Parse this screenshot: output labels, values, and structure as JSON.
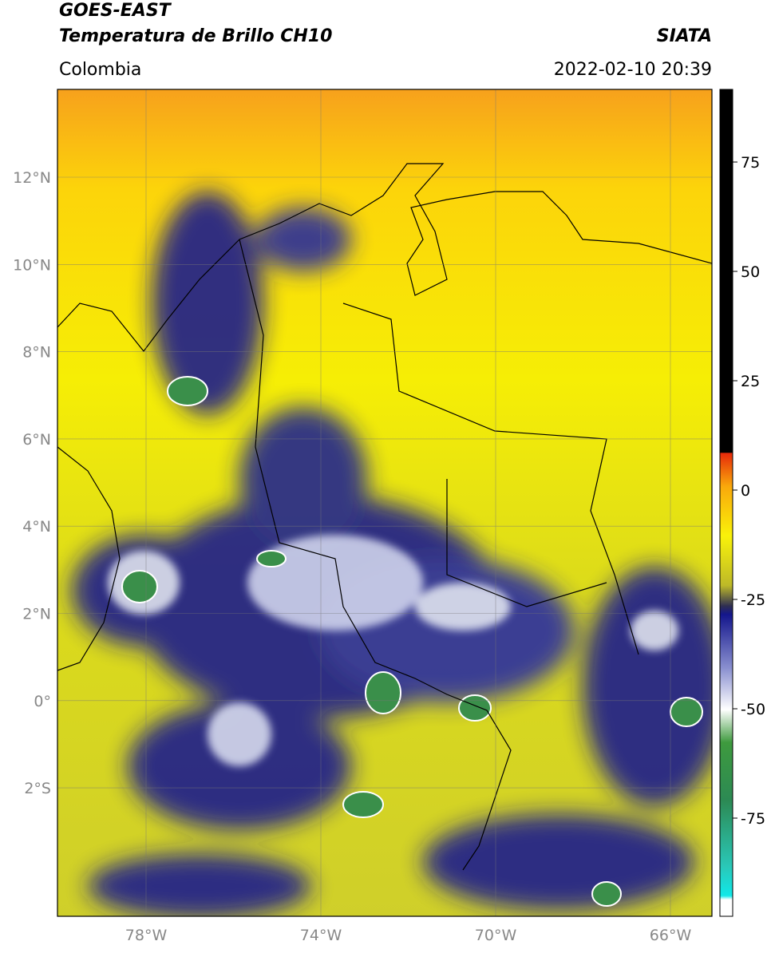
{
  "header": {
    "title_lines": [
      "GOES-EAST",
      "Temperatura de Brillo CH10"
    ],
    "source": "SIATA",
    "region": "Colombia",
    "timestamp": "2022-02-10 20:39"
  },
  "map": {
    "lat_labels": [
      "12°N",
      "10°N",
      "8°N",
      "6°N",
      "4°N",
      "2°N",
      "0°",
      "2°S"
    ],
    "lon_labels": [
      "78°W",
      "74°W",
      "70°W",
      "66°W"
    ]
  },
  "colorbar": {
    "labels": [
      "75",
      "50",
      "25",
      "0",
      "-25",
      "-50",
      "-75"
    ]
  }
}
